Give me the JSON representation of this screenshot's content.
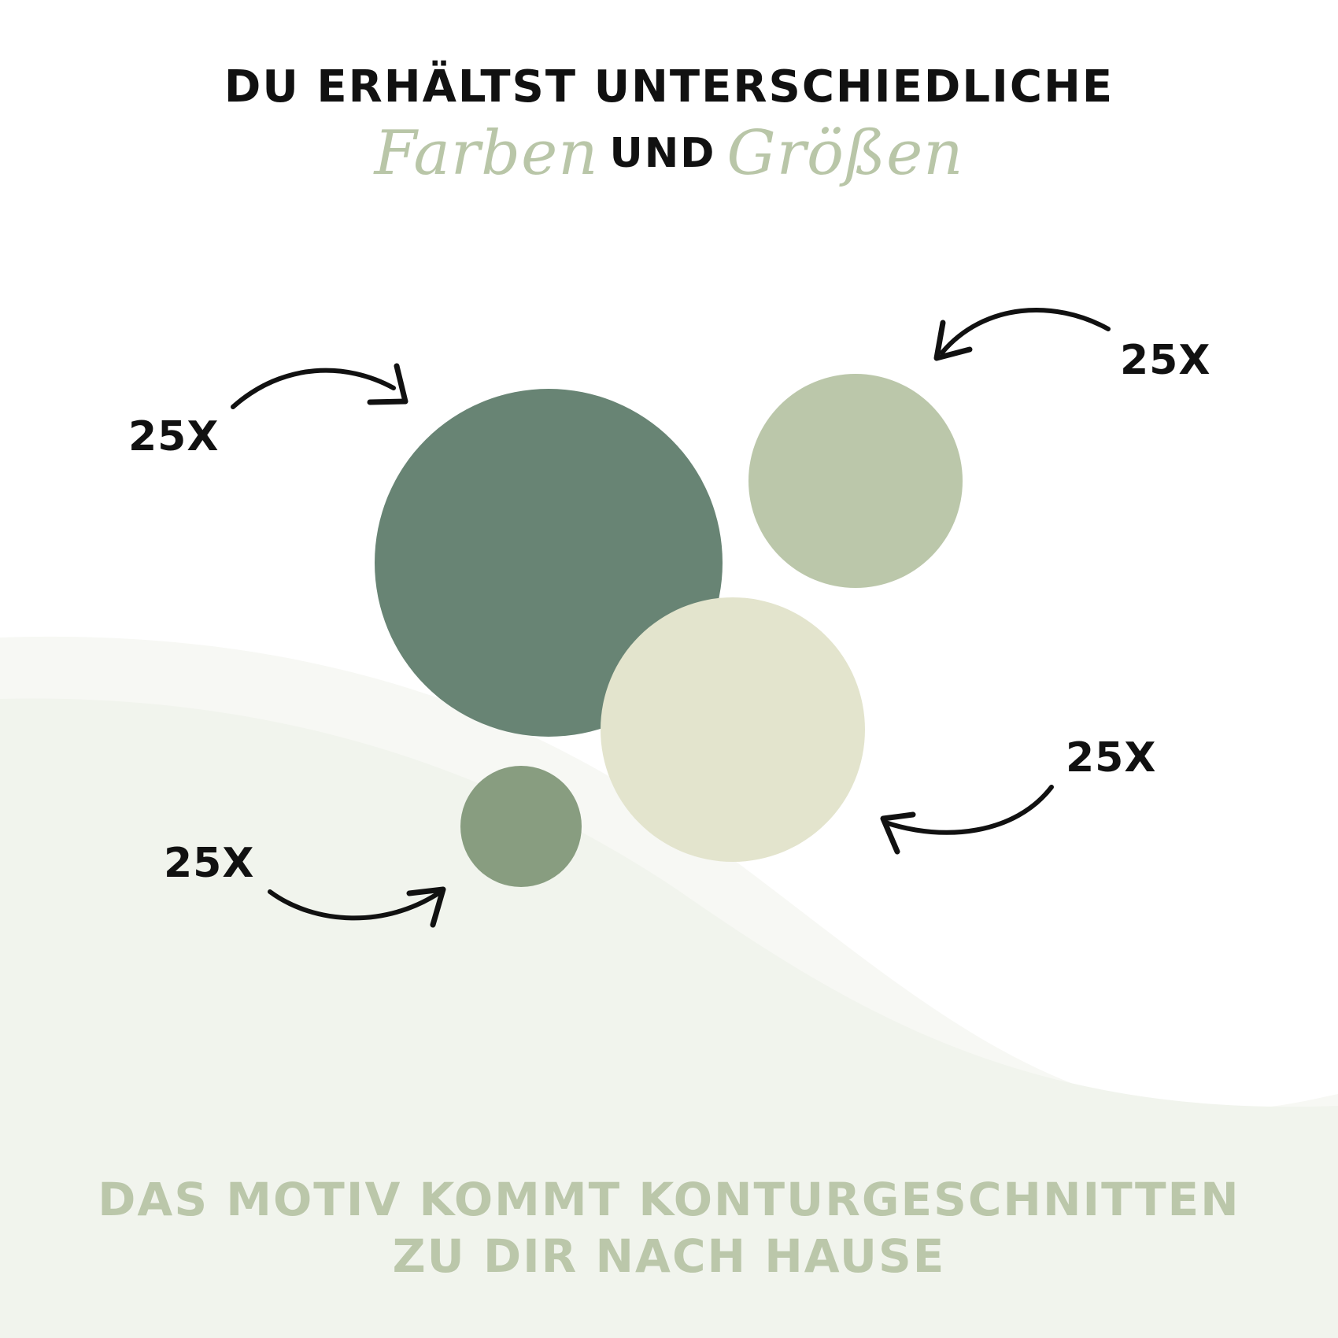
{
  "header": {
    "line1": "DU ERHÄLTST UNTERSCHIEDLICHE",
    "word_colors": "Farben",
    "word_and": "UND",
    "word_sizes": "Größen"
  },
  "dots": [
    {
      "name": "large-dark-green-dot",
      "count_label": "25X",
      "color": "#688474"
    },
    {
      "name": "medium-sage-dot",
      "count_label": "25X",
      "color": "#bbc7aa"
    },
    {
      "name": "medium-cream-dot",
      "count_label": "25X",
      "color": "#e3e4cd"
    },
    {
      "name": "small-green-dot",
      "count_label": "25X",
      "color": "#889d80"
    }
  ],
  "footer": {
    "line1": "DAS MOTIV KOMMT KONTURGESCHNITTEN",
    "line2": "ZU DIR NACH HAUSE"
  },
  "colors": {
    "accent": "#b9c6a8",
    "wave_light": "#f2f4ee",
    "wave_mid": "#f6f7f3",
    "text": "#111111",
    "footer_text": "#bbc7aa"
  }
}
